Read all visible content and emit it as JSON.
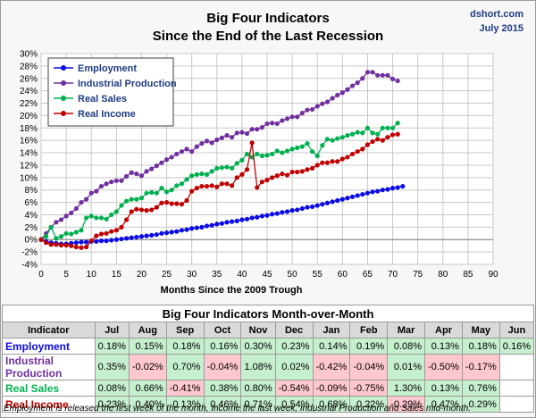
{
  "header": {
    "title_line1": "Big Four Indicators",
    "title_line2": "Since the End of the Last Recession",
    "site": "dshort.com",
    "date": "July 2015"
  },
  "chart_data": {
    "type": "line",
    "xlabel": "Months Since the 2009 Trough",
    "ylabel": "",
    "xlim": [
      0,
      90
    ],
    "ylim": [
      -4,
      30
    ],
    "x_ticks": [
      0,
      5,
      10,
      15,
      20,
      25,
      30,
      35,
      40,
      45,
      50,
      55,
      60,
      65,
      70,
      75,
      80,
      85,
      90
    ],
    "y_ticks": [
      -4,
      -2,
      0,
      2,
      4,
      6,
      8,
      10,
      12,
      14,
      16,
      18,
      20,
      22,
      24,
      26,
      28,
      30
    ],
    "y_tick_suffix": "%",
    "grid": true,
    "legend_position": "top-left",
    "series": [
      {
        "name": "Employment",
        "color": "#0a0ae6",
        "points": [
          [
            0,
            0
          ],
          [
            1,
            -0.3
          ],
          [
            2,
            -0.5
          ],
          [
            3,
            -0.6
          ],
          [
            4,
            -0.7
          ],
          [
            5,
            -0.7
          ],
          [
            6,
            -0.6
          ],
          [
            7,
            -0.5
          ],
          [
            8,
            -0.4
          ],
          [
            9,
            -0.4
          ],
          [
            10,
            -0.3
          ],
          [
            11,
            -0.3
          ],
          [
            12,
            -0.2
          ],
          [
            13,
            -0.2
          ],
          [
            14,
            -0.1
          ],
          [
            15,
            0
          ],
          [
            16,
            0.1
          ],
          [
            17,
            0.2
          ],
          [
            18,
            0.3
          ],
          [
            19,
            0.4
          ],
          [
            20,
            0.5
          ],
          [
            21,
            0.6
          ],
          [
            22,
            0.7
          ],
          [
            23,
            0.8
          ],
          [
            24,
            1.0
          ],
          [
            25,
            1.1
          ],
          [
            26,
            1.2
          ],
          [
            27,
            1.3
          ],
          [
            28,
            1.5
          ],
          [
            29,
            1.6
          ],
          [
            30,
            1.8
          ],
          [
            31,
            1.9
          ],
          [
            32,
            2.0
          ],
          [
            33,
            2.2
          ],
          [
            34,
            2.3
          ],
          [
            35,
            2.5
          ],
          [
            36,
            2.6
          ],
          [
            37,
            2.8
          ],
          [
            38,
            2.9
          ],
          [
            39,
            3.0
          ],
          [
            40,
            3.2
          ],
          [
            41,
            3.3
          ],
          [
            42,
            3.5
          ],
          [
            43,
            3.6
          ],
          [
            44,
            3.8
          ],
          [
            45,
            3.9
          ],
          [
            46,
            4.1
          ],
          [
            47,
            4.2
          ],
          [
            48,
            4.4
          ],
          [
            49,
            4.5
          ],
          [
            50,
            4.7
          ],
          [
            51,
            4.8
          ],
          [
            52,
            5.0
          ],
          [
            53,
            5.2
          ],
          [
            54,
            5.3
          ],
          [
            55,
            5.5
          ],
          [
            56,
            5.7
          ],
          [
            57,
            5.9
          ],
          [
            58,
            6.1
          ],
          [
            59,
            6.3
          ],
          [
            60,
            6.5
          ],
          [
            61,
            6.7
          ],
          [
            62,
            6.9
          ],
          [
            63,
            7.1
          ],
          [
            64,
            7.3
          ],
          [
            65,
            7.5
          ],
          [
            66,
            7.7
          ],
          [
            67,
            7.8
          ],
          [
            68,
            8.0
          ],
          [
            69,
            8.1
          ],
          [
            70,
            8.3
          ],
          [
            71,
            8.4
          ],
          [
            72,
            8.6
          ]
        ]
      },
      {
        "name": "Industrial Production",
        "color": "#7030a0",
        "points": [
          [
            0,
            0
          ],
          [
            1,
            1
          ],
          [
            2,
            2
          ],
          [
            3,
            2.8
          ],
          [
            4,
            3.2
          ],
          [
            5,
            3.8
          ],
          [
            6,
            4.3
          ],
          [
            7,
            5.0
          ],
          [
            8,
            6.0
          ],
          [
            9,
            6.5
          ],
          [
            10,
            7.5
          ],
          [
            11,
            7.8
          ],
          [
            12,
            8.6
          ],
          [
            13,
            9.0
          ],
          [
            14,
            9.3
          ],
          [
            15,
            9.5
          ],
          [
            16,
            9.5
          ],
          [
            17,
            10.2
          ],
          [
            18,
            10.8
          ],
          [
            19,
            10.6
          ],
          [
            20,
            10.3
          ],
          [
            21,
            11.0
          ],
          [
            22,
            11.4
          ],
          [
            23,
            11.9
          ],
          [
            24,
            12.4
          ],
          [
            25,
            12.9
          ],
          [
            26,
            13.3
          ],
          [
            27,
            13.8
          ],
          [
            28,
            14.2
          ],
          [
            29,
            14.6
          ],
          [
            30,
            14.2
          ],
          [
            31,
            15.0
          ],
          [
            32,
            15.5
          ],
          [
            33,
            15.9
          ],
          [
            34,
            15.6
          ],
          [
            35,
            16.1
          ],
          [
            36,
            16.4
          ],
          [
            37,
            16.8
          ],
          [
            38,
            16.5
          ],
          [
            39,
            17.2
          ],
          [
            40,
            17.3
          ],
          [
            41,
            17.1
          ],
          [
            42,
            17.8
          ],
          [
            43,
            17.8
          ],
          [
            44,
            18.1
          ],
          [
            45,
            18.7
          ],
          [
            46,
            18.8
          ],
          [
            47,
            18.7
          ],
          [
            48,
            19.2
          ],
          [
            49,
            19.5
          ],
          [
            50,
            19.8
          ],
          [
            51,
            19.8
          ],
          [
            52,
            20.4
          ],
          [
            53,
            20.9
          ],
          [
            54,
            21.0
          ],
          [
            55,
            21.5
          ],
          [
            56,
            21.9
          ],
          [
            57,
            22.2
          ],
          [
            58,
            22.8
          ],
          [
            59,
            23.3
          ],
          [
            60,
            23.7
          ],
          [
            61,
            24.2
          ],
          [
            62,
            24.8
          ],
          [
            63,
            25.3
          ],
          [
            64,
            26.0
          ],
          [
            65,
            27.0
          ],
          [
            66,
            27.0
          ],
          [
            67,
            26.5
          ],
          [
            68,
            26.5
          ],
          [
            69,
            26.5
          ],
          [
            70,
            25.9
          ],
          [
            71,
            25.6
          ]
        ]
      },
      {
        "name": "Real Sales",
        "color": "#00b050",
        "points": [
          [
            0,
            0
          ],
          [
            1,
            0.5
          ],
          [
            2,
            2
          ],
          [
            3,
            0.2
          ],
          [
            4,
            0.5
          ],
          [
            5,
            1.0
          ],
          [
            6,
            0.9
          ],
          [
            7,
            1.2
          ],
          [
            8,
            1.5
          ],
          [
            9,
            3.5
          ],
          [
            10,
            3.8
          ],
          [
            11,
            3.5
          ],
          [
            12,
            3.5
          ],
          [
            13,
            3.3
          ],
          [
            14,
            4.0
          ],
          [
            15,
            4.5
          ],
          [
            16,
            5.5
          ],
          [
            17,
            6.2
          ],
          [
            18,
            6.5
          ],
          [
            19,
            6.5
          ],
          [
            20,
            6.7
          ],
          [
            21,
            7.5
          ],
          [
            22,
            7.6
          ],
          [
            23,
            7.5
          ],
          [
            24,
            8.3
          ],
          [
            25,
            7.7
          ],
          [
            26,
            8.0
          ],
          [
            27,
            8.7
          ],
          [
            28,
            9.0
          ],
          [
            29,
            9.7
          ],
          [
            30,
            10.3
          ],
          [
            31,
            10.5
          ],
          [
            32,
            10.6
          ],
          [
            33,
            10.5
          ],
          [
            34,
            11.0
          ],
          [
            35,
            11.5
          ],
          [
            36,
            11.6
          ],
          [
            37,
            11.7
          ],
          [
            38,
            11.5
          ],
          [
            39,
            12.3
          ],
          [
            40,
            12.8
          ],
          [
            41,
            13.8
          ],
          [
            42,
            13.3
          ],
          [
            43,
            13.8
          ],
          [
            44,
            13.5
          ],
          [
            45,
            13.6
          ],
          [
            46,
            13.8
          ],
          [
            47,
            14.3
          ],
          [
            48,
            14.0
          ],
          [
            49,
            14.3
          ],
          [
            50,
            14.6
          ],
          [
            51,
            14.8
          ],
          [
            52,
            15.0
          ],
          [
            53,
            15.5
          ],
          [
            54,
            14.2
          ],
          [
            55,
            13.5
          ],
          [
            56,
            15.2
          ],
          [
            57,
            16.2
          ],
          [
            58,
            16.0
          ],
          [
            59,
            16.3
          ],
          [
            60,
            16.5
          ],
          [
            61,
            16.8
          ],
          [
            62,
            17.0
          ],
          [
            63,
            17.3
          ],
          [
            64,
            17.2
          ],
          [
            65,
            18.0
          ],
          [
            66,
            17.2
          ],
          [
            67,
            17.0
          ],
          [
            68,
            18.0
          ],
          [
            69,
            18.0
          ],
          [
            70,
            18.0
          ],
          [
            71,
            18.8
          ]
        ]
      },
      {
        "name": "Real Income",
        "color": "#c00000",
        "points": [
          [
            0,
            0
          ],
          [
            1,
            -0.5
          ],
          [
            2,
            -0.8
          ],
          [
            3,
            -0.8
          ],
          [
            4,
            -0.9
          ],
          [
            5,
            -0.9
          ],
          [
            6,
            -1.0
          ],
          [
            7,
            -1.2
          ],
          [
            8,
            -1.3
          ],
          [
            9,
            -1.2
          ],
          [
            10,
            -0.2
          ],
          [
            11,
            0.6
          ],
          [
            12,
            0.9
          ],
          [
            13,
            1.0
          ],
          [
            14,
            1.3
          ],
          [
            15,
            1.5
          ],
          [
            16,
            2.0
          ],
          [
            17,
            3.2
          ],
          [
            18,
            4.5
          ],
          [
            19,
            4.9
          ],
          [
            20,
            4.8
          ],
          [
            21,
            4.7
          ],
          [
            22,
            4.8
          ],
          [
            23,
            5.2
          ],
          [
            24,
            5.9
          ],
          [
            25,
            6.0
          ],
          [
            26,
            5.8
          ],
          [
            27,
            5.8
          ],
          [
            28,
            5.7
          ],
          [
            29,
            6.3
          ],
          [
            30,
            7.8
          ],
          [
            31,
            8.3
          ],
          [
            32,
            8.6
          ],
          [
            33,
            8.6
          ],
          [
            34,
            8.7
          ],
          [
            35,
            8.5
          ],
          [
            36,
            9.0
          ],
          [
            37,
            9.0
          ],
          [
            38,
            8.7
          ],
          [
            39,
            10.0
          ],
          [
            40,
            10.5
          ],
          [
            41,
            11.3
          ],
          [
            42,
            15.6
          ],
          [
            43,
            8.4
          ],
          [
            44,
            9.3
          ],
          [
            45,
            9.6
          ],
          [
            46,
            10.0
          ],
          [
            47,
            10.3
          ],
          [
            48,
            10.6
          ],
          [
            49,
            10.4
          ],
          [
            50,
            10.9
          ],
          [
            51,
            10.9
          ],
          [
            52,
            11.0
          ],
          [
            53,
            11.3
          ],
          [
            54,
            11.5
          ],
          [
            55,
            12.0
          ],
          [
            56,
            12.4
          ],
          [
            57,
            12.4
          ],
          [
            58,
            12.6
          ],
          [
            59,
            12.6
          ],
          [
            60,
            13.0
          ],
          [
            61,
            13.3
          ],
          [
            62,
            13.8
          ],
          [
            63,
            14.2
          ],
          [
            64,
            14.6
          ],
          [
            65,
            15.3
          ],
          [
            66,
            15.8
          ],
          [
            67,
            16.2
          ],
          [
            68,
            16.0
          ],
          [
            69,
            16.5
          ],
          [
            70,
            16.9
          ],
          [
            71,
            17.0
          ]
        ]
      }
    ]
  },
  "table": {
    "title": "Big Four Indicators Month-over-Month",
    "header_label": "Indicator",
    "months": [
      "Jul",
      "Aug",
      "Sep",
      "Oct",
      "Nov",
      "Dec",
      "Jan",
      "Feb",
      "Mar",
      "Apr",
      "May",
      "Jun"
    ],
    "rows": [
      {
        "name": "Employment",
        "color": "#0a0ae6",
        "values": [
          "0.18%",
          "0.15%",
          "0.18%",
          "0.16%",
          "0.30%",
          "0.23%",
          "0.14%",
          "0.19%",
          "0.08%",
          "0.13%",
          "0.18%",
          "0.16%"
        ]
      },
      {
        "name": "Industrial Production",
        "color": "#7030a0",
        "values": [
          "0.35%",
          "-0.02%",
          "0.70%",
          "-0.04%",
          "1.08%",
          "0.02%",
          "-0.42%",
          "-0.04%",
          "0.01%",
          "-0.50%",
          "-0.17%",
          ""
        ]
      },
      {
        "name": "Real Sales",
        "color": "#00b050",
        "values": [
          "0.08%",
          "0.66%",
          "-0.41%",
          "0.38%",
          "0.80%",
          "-0.54%",
          "-0.09%",
          "-0.75%",
          "1.30%",
          "0.13%",
          "0.76%",
          ""
        ]
      },
      {
        "name": "Real Income",
        "color": "#c00000",
        "values": [
          "0.23%",
          "0.40%",
          "0.13%",
          "0.46%",
          "0.71%",
          "0.54%",
          "0.68%",
          "0.22%",
          "-0.29%",
          "0.47%",
          "0.29%",
          ""
        ]
      }
    ]
  },
  "footnote": "Employment is released the first week of the month, Income the last week, Industrial Production and Sales mid-month."
}
